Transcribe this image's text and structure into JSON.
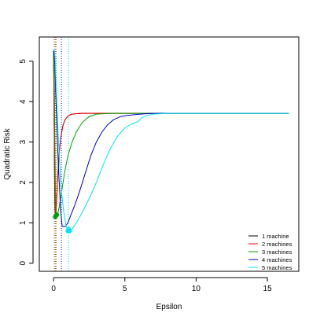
{
  "chart_data": {
    "type": "line",
    "title": "",
    "xlabel": "Epsilon",
    "ylabel": "Quadratic Risk",
    "xlim": [
      -1,
      17.2
    ],
    "ylim": [
      -0.2,
      5.6
    ],
    "x_ticks": [
      0,
      5,
      10,
      15
    ],
    "y_ticks": [
      0,
      1,
      2,
      3,
      4,
      5
    ],
    "x_tick_labels": [
      "0",
      "5",
      "10",
      "15"
    ],
    "y_tick_labels": [
      "0",
      "1",
      "2",
      "3",
      "4",
      "5"
    ],
    "grid": false,
    "legend_position": "bottom-right",
    "series": [
      {
        "name": "1 machine",
        "color": "#000000",
        "x": [
          0.0,
          0.03,
          0.06,
          0.1,
          0.15,
          0.22,
          0.3,
          0.4,
          0.5,
          0.65,
          0.8,
          1.0,
          1.2,
          1.5,
          2.0,
          3.0,
          5.0,
          8.0,
          12.0,
          16.5
        ],
        "y": [
          5.25,
          4.0,
          2.5,
          1.3,
          1.15,
          1.6,
          2.2,
          2.75,
          3.1,
          3.4,
          3.55,
          3.64,
          3.68,
          3.7,
          3.71,
          3.71,
          3.71,
          3.71,
          3.71,
          3.71
        ]
      },
      {
        "name": "2 machines",
        "color": "#ff0000",
        "x": [
          0.0,
          0.03,
          0.06,
          0.1,
          0.15,
          0.22,
          0.3,
          0.4,
          0.5,
          0.65,
          0.8,
          1.0,
          1.2,
          1.5,
          2.0,
          3.0,
          5.0,
          8.0,
          12.0,
          16.5
        ],
        "y": [
          5.25,
          4.0,
          2.5,
          1.3,
          1.15,
          1.6,
          2.2,
          2.75,
          3.1,
          3.4,
          3.55,
          3.64,
          3.68,
          3.7,
          3.71,
          3.71,
          3.71,
          3.71,
          3.71,
          3.71
        ]
      },
      {
        "name": "3 machines",
        "color": "#00a000",
        "x": [
          0.0,
          0.05,
          0.1,
          0.15,
          0.25,
          0.4,
          0.6,
          0.8,
          1.0,
          1.3,
          1.6,
          2.0,
          2.5,
          3.0,
          4.0,
          6.0,
          10.0,
          16.5
        ],
        "y": [
          5.25,
          4.5,
          2.6,
          1.3,
          1.15,
          1.4,
          1.85,
          2.3,
          2.65,
          3.0,
          3.25,
          3.48,
          3.63,
          3.69,
          3.71,
          3.71,
          3.71,
          3.71
        ],
        "dots": [
          [
            0.12,
            1.15
          ],
          [
            0.22,
            1.2
          ]
        ]
      },
      {
        "name": "4 machines",
        "color": "#0000cc",
        "x": [
          0.0,
          0.05,
          0.1,
          0.2,
          0.35,
          0.5,
          0.6,
          0.7,
          0.85,
          1.0,
          1.2,
          1.5,
          1.8,
          2.2,
          2.6,
          3.0,
          3.4,
          3.8,
          4.2,
          4.7,
          5.2,
          5.8,
          6.5,
          7.0,
          8.0,
          12.0,
          16.5
        ],
        "y": [
          5.25,
          5.15,
          4.8,
          3.7,
          2.3,
          1.3,
          0.92,
          0.9,
          0.92,
          1.0,
          1.18,
          1.45,
          1.75,
          2.2,
          2.65,
          3.0,
          3.25,
          3.43,
          3.55,
          3.63,
          3.66,
          3.68,
          3.7,
          3.71,
          3.71,
          3.71,
          3.71
        ]
      },
      {
        "name": "5 machines",
        "color": "#00e5ee",
        "x": [
          0.0,
          0.05,
          0.1,
          0.2,
          0.35,
          0.5,
          0.7,
          0.9,
          1.1,
          1.3,
          1.6,
          2.0,
          2.5,
          3.0,
          3.5,
          4.0,
          4.5,
          5.0,
          5.5,
          5.9,
          6.2,
          6.5,
          7.0,
          8.0,
          12.0,
          16.5
        ],
        "y": [
          5.25,
          5.3,
          5.1,
          4.2,
          3.0,
          2.0,
          1.3,
          0.88,
          0.82,
          0.85,
          1.0,
          1.25,
          1.6,
          2.0,
          2.45,
          2.85,
          3.15,
          3.35,
          3.45,
          3.5,
          3.6,
          3.65,
          3.69,
          3.71,
          3.71,
          3.71
        ],
        "dots": [
          [
            1.0,
            0.8
          ],
          [
            1.05,
            0.84
          ],
          [
            1.12,
            0.8
          ]
        ]
      }
    ],
    "vertical_dotted_lines": [
      {
        "x": 0.05,
        "color": "#00a000"
      },
      {
        "x": 0.12,
        "color": "#ff0000"
      },
      {
        "x": 0.18,
        "color": "#8b6914"
      },
      {
        "x": 0.55,
        "color": "#0000cc"
      },
      {
        "x": 1.05,
        "color": "#00e5ee"
      }
    ]
  }
}
